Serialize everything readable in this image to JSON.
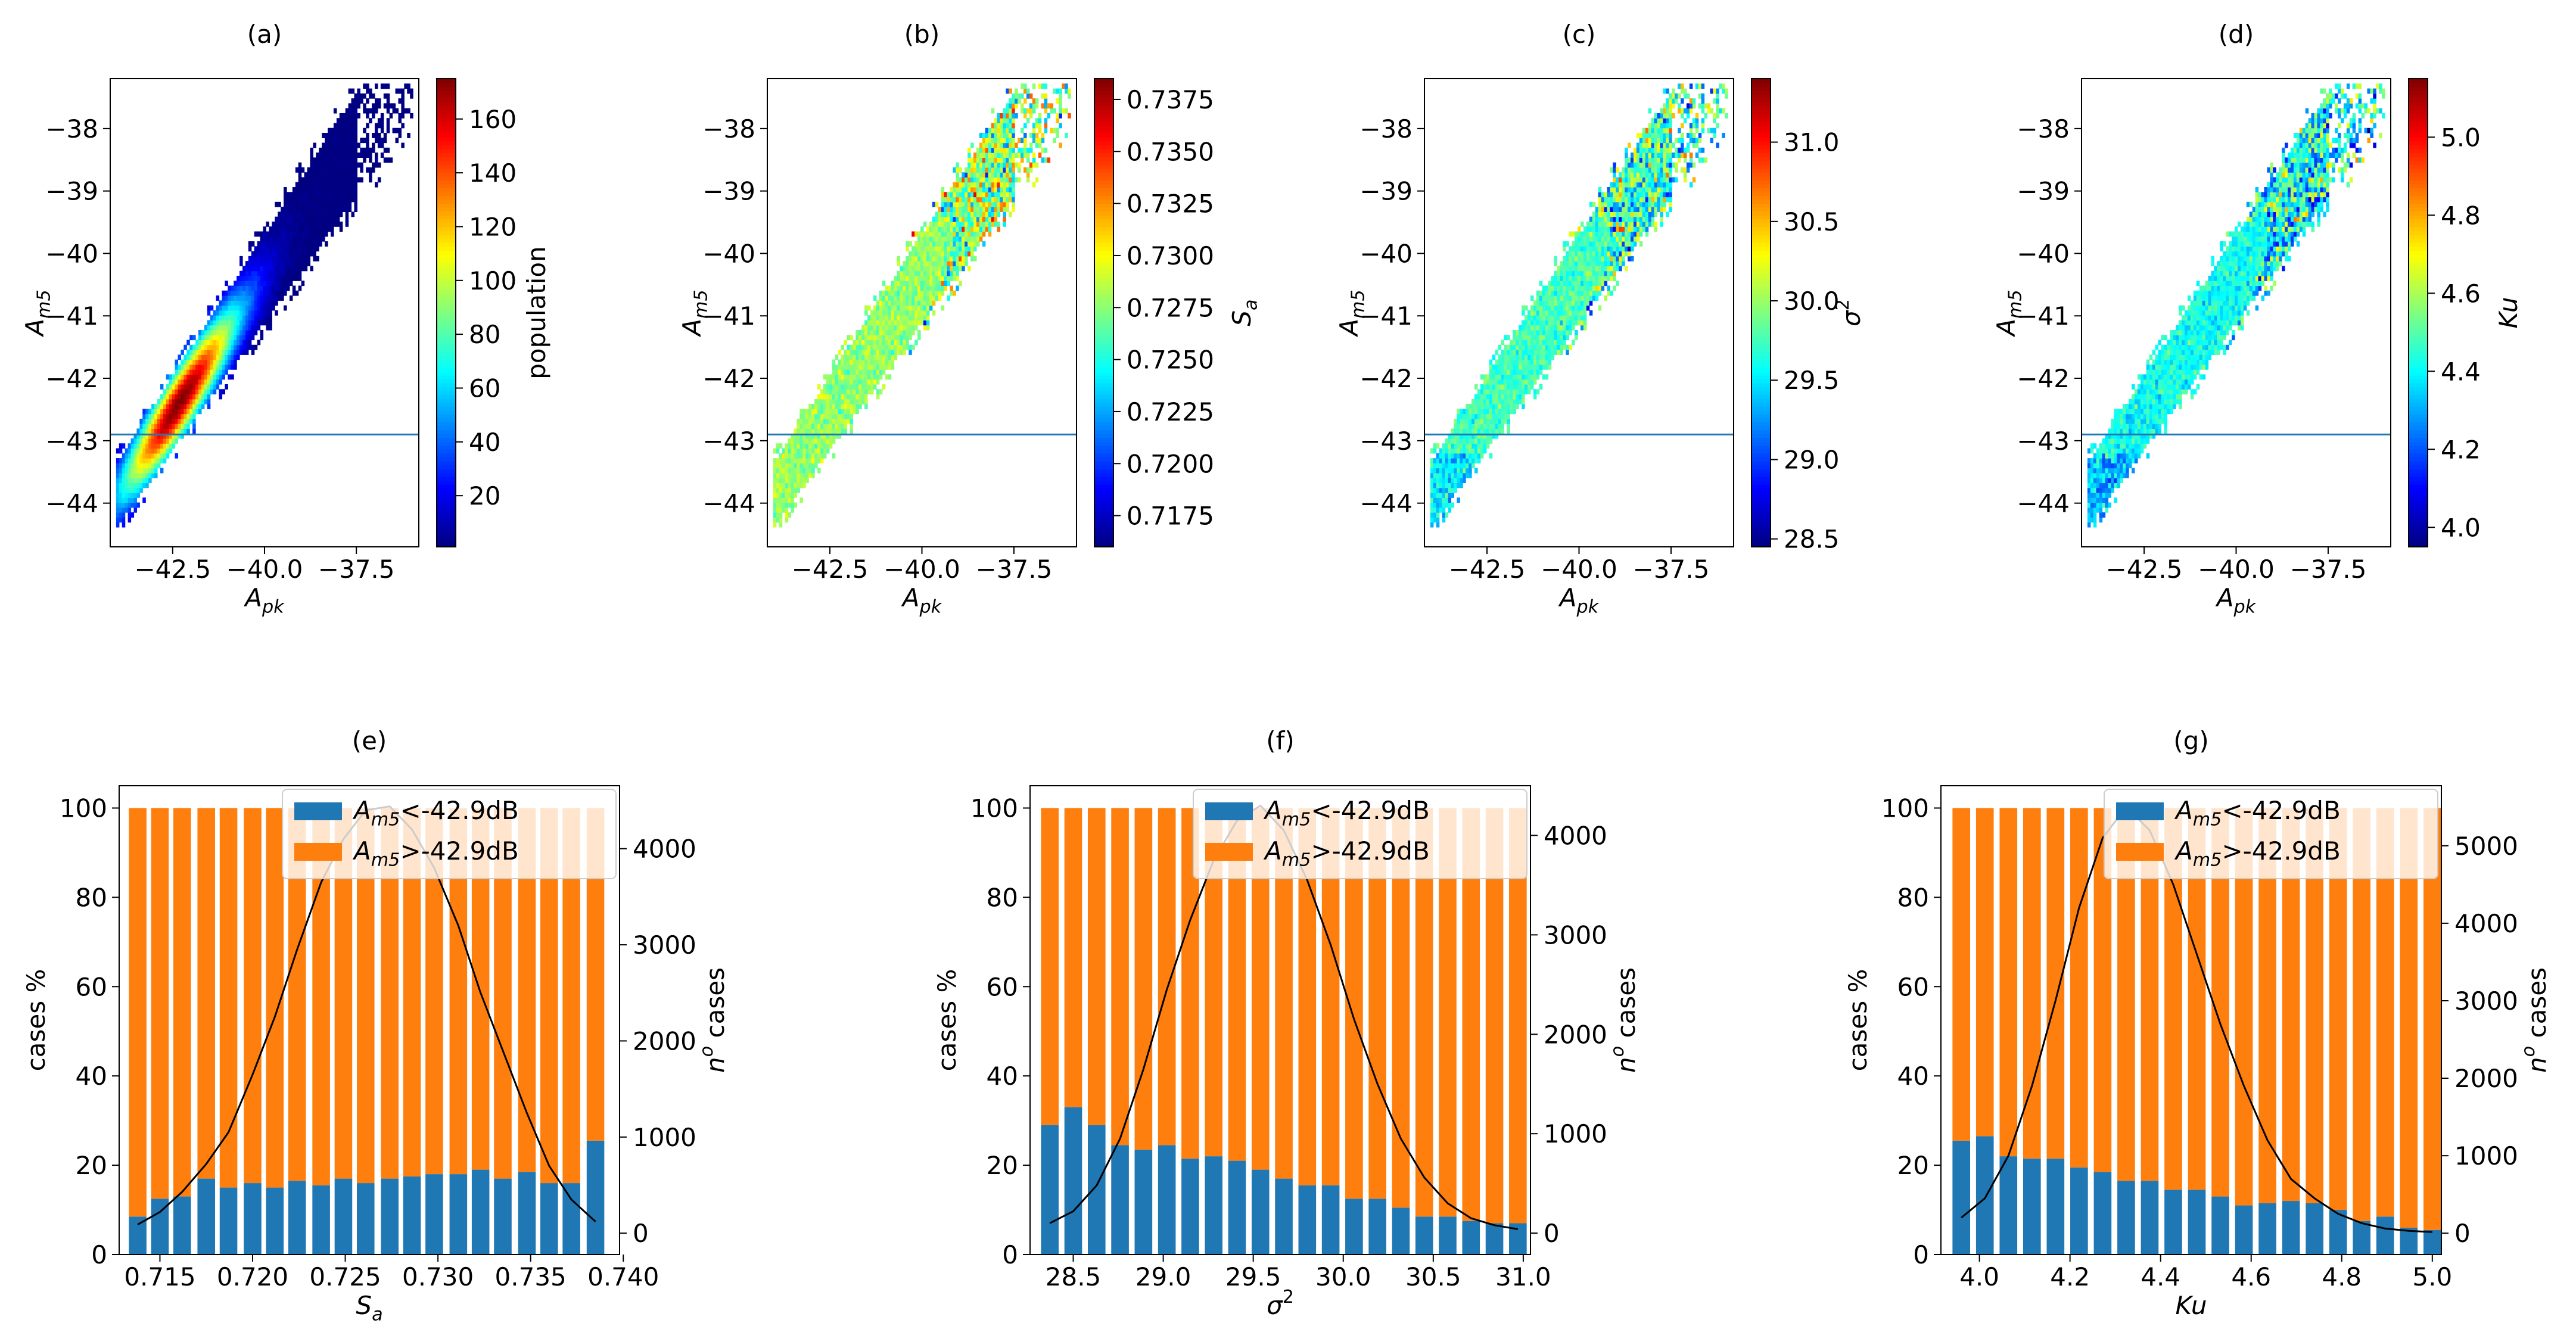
{
  "chart_data": [
    {
      "panel": "(a)",
      "type": "heatmap",
      "xlabel": "A_pk",
      "ylabel": "A_m5",
      "xlim": [
        -44.2,
        -35.8
      ],
      "ylim": [
        -44.7,
        -37.2
      ],
      "xticks": [
        -42.5,
        -40.0,
        -37.5
      ],
      "yticks": [
        -44,
        -43,
        -42,
        -41,
        -40,
        -39,
        -38
      ],
      "hline": -42.9,
      "colorbar": {
        "label": "population",
        "range": [
          1,
          175
        ],
        "ticks": [
          20,
          40,
          60,
          80,
          100,
          120,
          140,
          160
        ]
      },
      "density": {
        "peak": [
          -42.3,
          -42.4
        ],
        "peak_value": 175
      }
    },
    {
      "panel": "(b)",
      "type": "heatmap",
      "xlabel": "A_pk",
      "ylabel": "A_m5",
      "xlim": [
        -44.2,
        -35.8
      ],
      "ylim": [
        -44.7,
        -37.2
      ],
      "xticks": [
        -42.5,
        -40.0,
        -37.5
      ],
      "yticks": [
        -44,
        -43,
        -42,
        -41,
        -40,
        -39,
        -38
      ],
      "hline": -42.9,
      "colorbar": {
        "label": "S_a",
        "range": [
          0.716,
          0.7385
        ],
        "ticks": [
          0.7175,
          0.72,
          0.7225,
          0.725,
          0.7275,
          0.73,
          0.7325,
          0.735,
          0.7375
        ]
      },
      "typical_value": 0.7277
    },
    {
      "panel": "(c)",
      "type": "heatmap",
      "xlabel": "A_pk",
      "ylabel": "A_m5",
      "xlim": [
        -44.2,
        -35.8
      ],
      "ylim": [
        -44.7,
        -37.2
      ],
      "xticks": [
        -42.5,
        -40.0,
        -37.5
      ],
      "yticks": [
        -44,
        -43,
        -42,
        -41,
        -40,
        -39,
        -38
      ],
      "hline": -42.9,
      "colorbar": {
        "label": "σ²",
        "range": [
          28.45,
          31.4
        ],
        "ticks": [
          28.5,
          29.0,
          29.5,
          30.0,
          30.5,
          31.0
        ]
      },
      "typical_value": 29.75
    },
    {
      "panel": "(d)",
      "type": "heatmap",
      "xlabel": "A_pk",
      "ylabel": "A_m5",
      "xlim": [
        -44.2,
        -35.8
      ],
      "ylim": [
        -44.7,
        -37.2
      ],
      "xticks": [
        -42.5,
        -40.0,
        -37.5
      ],
      "yticks": [
        -44,
        -43,
        -42,
        -41,
        -40,
        -39,
        -38
      ],
      "hline": -42.9,
      "colorbar": {
        "label": "Ku",
        "range": [
          3.95,
          5.15
        ],
        "ticks": [
          4.0,
          4.2,
          4.4,
          4.6,
          4.8,
          5.0
        ]
      },
      "typical_value": 4.42
    },
    {
      "panel": "(e)",
      "type": "bar",
      "xlabel": "S_a",
      "ylabel": "cases %",
      "y2label": "n° cases",
      "xlim": [
        0.7128,
        0.7398
      ],
      "ylim": [
        0,
        105
      ],
      "y2lim": [
        -222,
        4655
      ],
      "xticks": [
        0.715,
        0.72,
        0.725,
        0.73,
        0.735,
        0.74
      ],
      "xtick_labels": [
        "0.715",
        "0.720",
        "0.725",
        "0.730",
        "0.735",
        "0.740"
      ],
      "yticks": [
        0,
        20,
        40,
        60,
        80,
        100
      ],
      "y2ticks": [
        0,
        1000,
        2000,
        3000,
        4000
      ],
      "bar_width": 0.00095,
      "x": [
        0.7138,
        0.715,
        0.7162,
        0.7175,
        0.7187,
        0.72,
        0.7212,
        0.7224,
        0.7237,
        0.7249,
        0.7261,
        0.7274,
        0.7286,
        0.7298,
        0.7311,
        0.7323,
        0.7335,
        0.7348,
        0.736,
        0.7372,
        0.7385
      ],
      "series": [
        {
          "name": "A_m5<-42.9dB",
          "color": "#1f77b4",
          "values": [
            8.5,
            12.5,
            13,
            17,
            15,
            16,
            15,
            16.5,
            15.5,
            17,
            16,
            17,
            17.5,
            18,
            18,
            19,
            17,
            18.5,
            16,
            16,
            25.5
          ]
        },
        {
          "name": "A_m5>-42.9dB",
          "color": "#ff7f0e",
          "values": [
            91.5,
            87.5,
            87,
            83,
            85,
            84,
            85,
            83.5,
            84.5,
            83,
            84,
            83,
            82.5,
            82,
            82,
            81,
            83,
            81.5,
            84,
            84,
            74.5
          ]
        }
      ],
      "counts": [
        90,
        220,
        430,
        720,
        1050,
        1650,
        2250,
        2950,
        3650,
        4100,
        4400,
        4440,
        4200,
        3800,
        3200,
        2500,
        1900,
        1250,
        700,
        350,
        120
      ],
      "legend": "top-right"
    },
    {
      "panel": "(f)",
      "type": "bar",
      "xlabel": "σ²",
      "ylabel": "cases %",
      "y2label": "n° cases",
      "xlim": [
        28.26,
        31.04
      ],
      "ylim": [
        0,
        105
      ],
      "y2lim": [
        -215,
        4500
      ],
      "xticks": [
        28.5,
        29.0,
        29.5,
        30.0,
        30.5,
        31.0
      ],
      "xtick_labels": [
        "28.5",
        "29.0",
        "29.5",
        "30.0",
        "30.5",
        "31.0"
      ],
      "yticks": [
        0,
        20,
        40,
        60,
        80,
        100
      ],
      "y2ticks": [
        0,
        1000,
        2000,
        3000,
        4000
      ],
      "bar_width": 0.098,
      "x": [
        28.37,
        28.5,
        28.63,
        28.76,
        28.89,
        29.02,
        29.15,
        29.28,
        29.41,
        29.54,
        29.67,
        29.8,
        29.93,
        30.06,
        30.19,
        30.32,
        30.45,
        30.58,
        30.71,
        30.84,
        30.97
      ],
      "series": [
        {
          "name": "A_m5<-42.9dB",
          "color": "#1f77b4",
          "values": [
            29,
            33,
            29,
            24.5,
            23.5,
            24.5,
            21.5,
            22,
            21,
            19,
            17,
            15.5,
            15.5,
            12.5,
            12.5,
            10.5,
            8.5,
            8.5,
            7.5,
            7,
            7
          ]
        },
        {
          "name": "A_m5>-42.9dB",
          "color": "#ff7f0e",
          "values": [
            71,
            67,
            71,
            75.5,
            76.5,
            75.5,
            78.5,
            78,
            79,
            81,
            83,
            84.5,
            84.5,
            87.5,
            87.5,
            89.5,
            91.5,
            91.5,
            92.5,
            93,
            93
          ]
        }
      ],
      "counts": [
        100,
        220,
        480,
        950,
        1650,
        2450,
        3150,
        3750,
        4150,
        4300,
        4050,
        3550,
        2900,
        2150,
        1500,
        950,
        560,
        300,
        150,
        80,
        40
      ],
      "legend": "top-right"
    },
    {
      "panel": "(g)",
      "type": "bar",
      "xlabel": "Ku",
      "ylabel": "cases %",
      "y2label": "n° cases",
      "xlim": [
        3.915,
        5.02
      ],
      "ylim": [
        0,
        105
      ],
      "y2lim": [
        -275,
        5775
      ],
      "xticks": [
        4.0,
        4.2,
        4.4,
        4.6,
        4.8,
        5.0
      ],
      "xtick_labels": [
        "4.0",
        "4.2",
        "4.4",
        "4.6",
        "4.8",
        "5.0"
      ],
      "yticks": [
        0,
        20,
        40,
        60,
        80,
        100
      ],
      "y2ticks": [
        0,
        1000,
        2000,
        3000,
        4000,
        5000
      ],
      "bar_width": 0.039,
      "x": [
        3.96,
        4.012,
        4.064,
        4.116,
        4.168,
        4.22,
        4.272,
        4.324,
        4.376,
        4.428,
        4.48,
        4.532,
        4.584,
        4.636,
        4.688,
        4.74,
        4.792,
        4.844,
        4.896,
        4.948,
        5.0
      ],
      "series": [
        {
          "name": "A_m5<-42.9dB",
          "color": "#1f77b4",
          "values": [
            25.5,
            26.5,
            22,
            21.5,
            21.5,
            19.5,
            18.5,
            16.5,
            16.5,
            14.5,
            14.5,
            13,
            11,
            11.5,
            12,
            11.5,
            10,
            7.5,
            8.5,
            6,
            5.5
          ]
        },
        {
          "name": "A_m5>-42.9dB",
          "color": "#ff7f0e",
          "values": [
            74.5,
            73.5,
            78,
            78.5,
            78.5,
            80.5,
            81.5,
            83.5,
            83.5,
            85.5,
            85.5,
            87,
            89,
            88.5,
            88,
            88.5,
            90,
            92.5,
            91.5,
            94,
            94.5
          ]
        }
      ],
      "counts": [
        200,
        450,
        1000,
        1900,
        3000,
        4200,
        5100,
        5500,
        5200,
        4500,
        3600,
        2700,
        1900,
        1200,
        700,
        450,
        250,
        130,
        60,
        30,
        15
      ],
      "legend": "top-right"
    }
  ]
}
